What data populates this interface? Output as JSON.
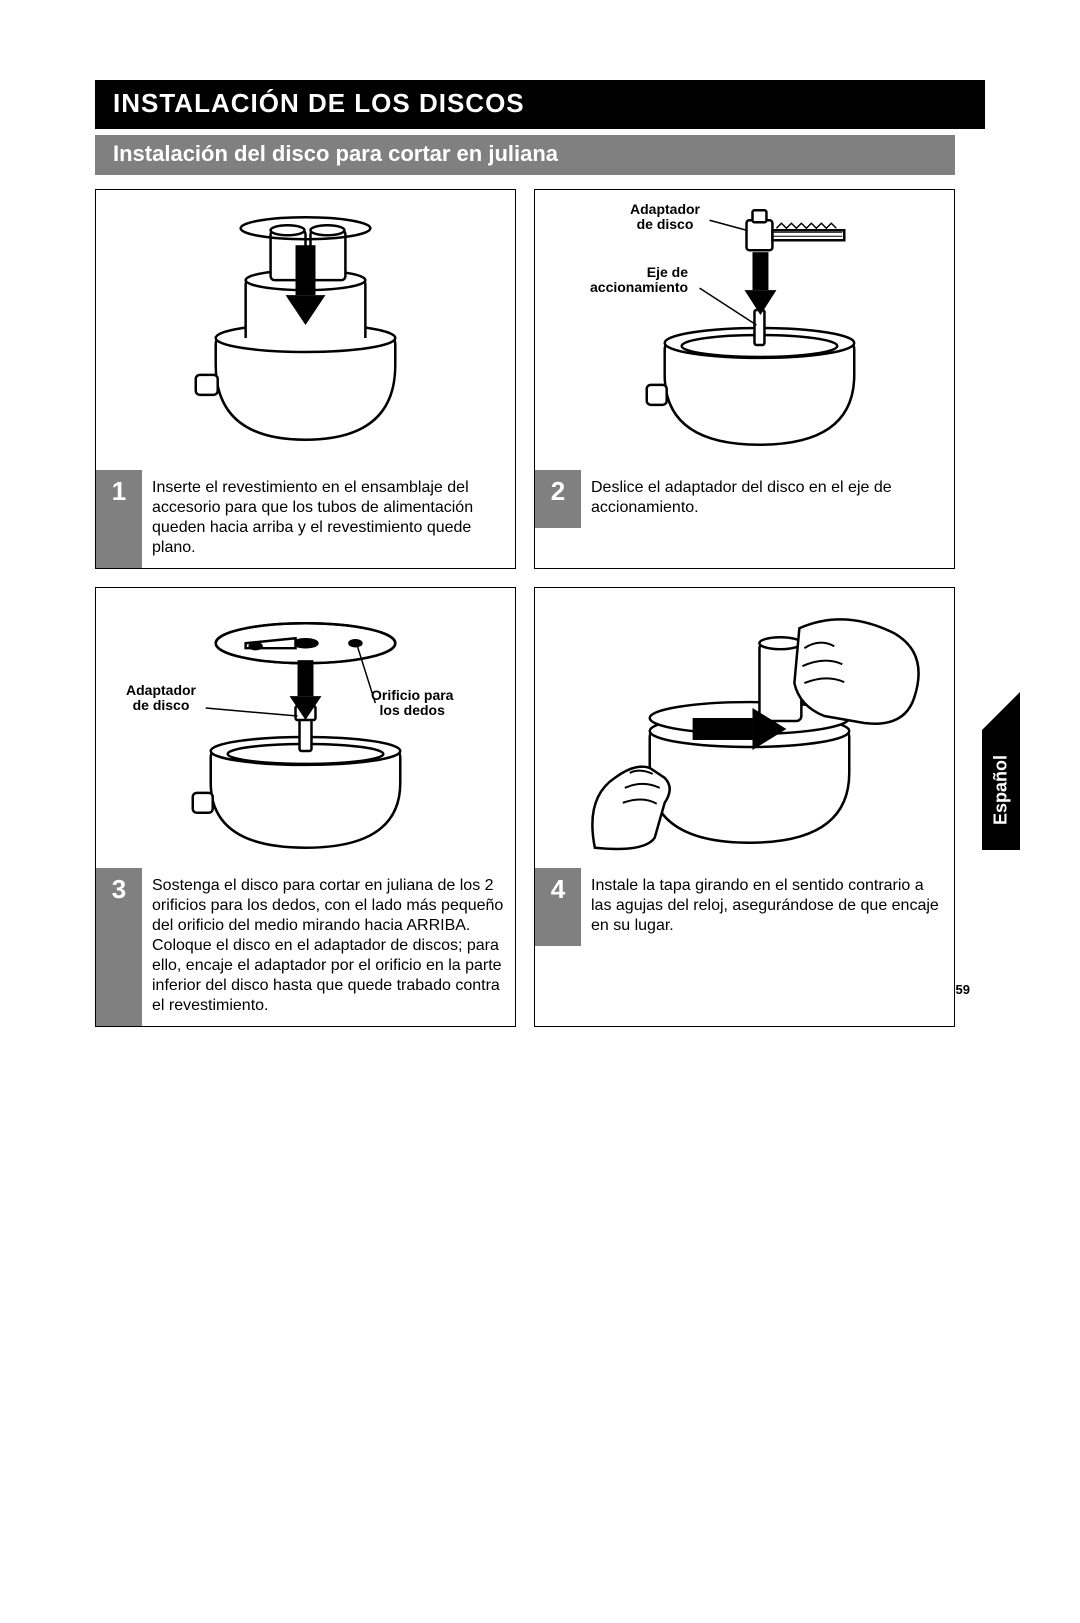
{
  "title": "INSTALACIÓN DE LOS DISCOS",
  "subtitle": "Instalación del disco para cortar en juliana",
  "language_tab": "Español",
  "page_number": "59",
  "colors": {
    "title_bg": "#000000",
    "subtitle_bg": "#808080",
    "stepnum_bg": "#808080",
    "text_on_dark": "#ffffff",
    "border": "#000000",
    "page_bg": "#ffffff"
  },
  "callouts": {
    "adaptador_de_disco": "Adaptador\nde disco",
    "eje_de_accionamiento": "Eje de\naccionamiento",
    "orificio_para_los_dedos": "Orificio para\nlos dedos"
  },
  "steps": [
    {
      "num": "1",
      "text": "Inserte el revestimiento en el ensamblaje del accesorio para que los tubos de alimentación queden hacia arriba y el revestimiento quede plano."
    },
    {
      "num": "2",
      "text": "Deslice el adaptador del disco en el eje de accionamiento."
    },
    {
      "num": "3",
      "text": "Sostenga el disco para cortar en juliana de los 2 orificios para los dedos, con el lado más pequeño del orificio del medio mirando hacia ARRIBA. Coloque el disco en el adaptador de discos; para ello, encaje el adaptador por el orificio en la parte inferior del disco hasta que quede trabado contra el revestimiento."
    },
    {
      "num": "4",
      "text": "Instale la tapa girando en el sentido contrario a las agujas del reloj, asegurándose de que encaje en su lugar."
    }
  ]
}
